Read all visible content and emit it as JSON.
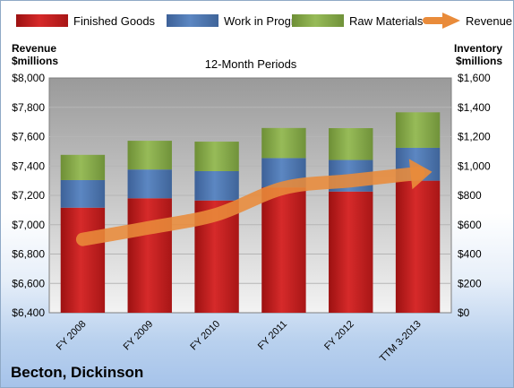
{
  "chart_data": {
    "type": "bar",
    "title": "12-Month Periods",
    "company": "Becton, Dickinson",
    "left_axis_label": [
      "Revenue",
      "$millions"
    ],
    "right_axis_label": [
      "Inventory",
      "$millions"
    ],
    "categories": [
      "FY 2008",
      "FY 2009",
      "FY 2010",
      "FY 2011",
      "FY 2012",
      "TTM 3-2013"
    ],
    "stacked": true,
    "series": [
      {
        "name": "Finished Goods",
        "color": "#c41f1f",
        "axis": "right",
        "values": [
          716,
          780,
          765,
          854,
          826,
          900
        ]
      },
      {
        "name": "Work in Progress",
        "color": "#4f7bb8",
        "axis": "right",
        "values": [
          188,
          196,
          200,
          200,
          215,
          224
        ]
      },
      {
        "name": "Raw Materials",
        "color": "#8aae4b",
        "axis": "right",
        "values": [
          172,
          196,
          201,
          205,
          217,
          242
        ]
      },
      {
        "name": "Revenue",
        "color": "#e98b3a",
        "axis": "left",
        "type": "line",
        "values": [
          6900,
          6980,
          7070,
          7250,
          7300,
          7350
        ]
      }
    ],
    "left_axis": {
      "min": 6400,
      "max": 8000,
      "step": 200,
      "ticks": [
        "$6,400",
        "$6,600",
        "$6,800",
        "$7,000",
        "$7,200",
        "$7,400",
        "$7,600",
        "$7,800",
        "$8,000"
      ]
    },
    "right_axis": {
      "min": 0,
      "max": 1600,
      "step": 200,
      "ticks": [
        "$0",
        "$200",
        "$400",
        "$600",
        "$800",
        "$1,000",
        "$1,200",
        "$1,400",
        "$1,600"
      ]
    },
    "legend_position": "top",
    "grid": true
  }
}
